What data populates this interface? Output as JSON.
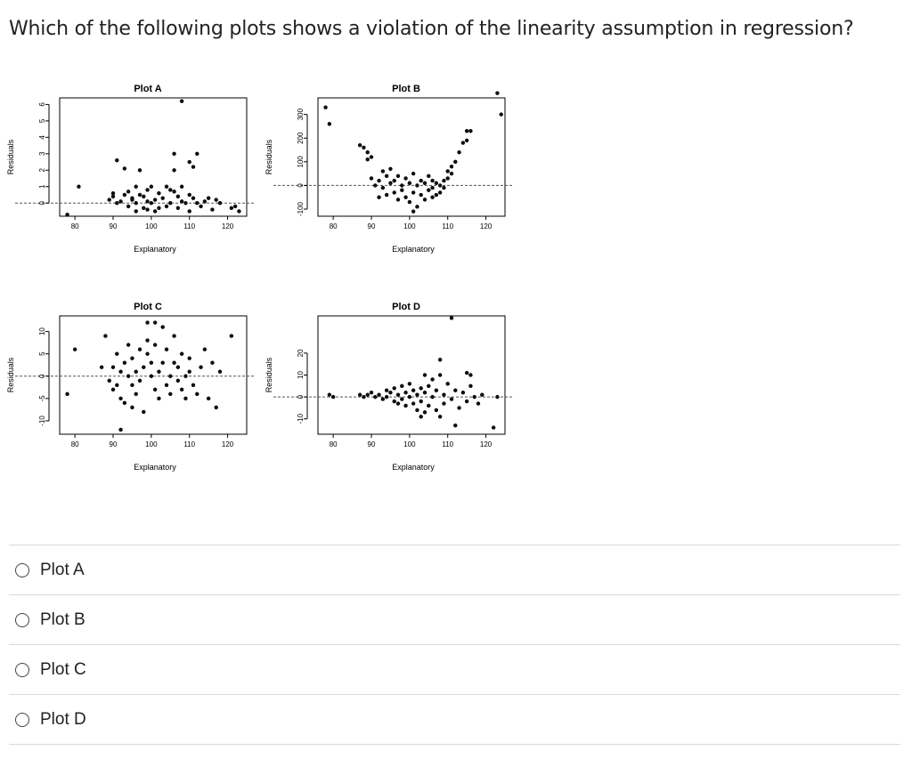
{
  "question": "Which of the following plots shows a violation of the linearity assumption in regression?",
  "options": [
    {
      "label": "Plot A"
    },
    {
      "label": "Plot B"
    },
    {
      "label": "Plot C"
    },
    {
      "label": "Plot D"
    }
  ],
  "chart_data": [
    {
      "type": "scatter",
      "title": "Plot A",
      "xlabel": "Explanatory",
      "ylabel": "Residuals",
      "xlim": [
        76,
        125
      ],
      "ylim": [
        -0.8,
        6.4
      ],
      "xticks": [
        "80",
        "90",
        "100",
        "110",
        "120"
      ],
      "yticks": [
        "0",
        "1",
        "2",
        "3",
        "4",
        "5",
        "6"
      ],
      "reference_line": 0,
      "points": [
        [
          78,
          -0.7
        ],
        [
          81,
          1.0
        ],
        [
          89,
          0.2
        ],
        [
          90,
          0.4
        ],
        [
          90,
          0.6
        ],
        [
          91,
          2.6
        ],
        [
          91,
          0.0
        ],
        [
          92,
          0.1
        ],
        [
          93,
          0.5
        ],
        [
          93,
          2.1
        ],
        [
          94,
          0.7
        ],
        [
          94,
          -0.2
        ],
        [
          95,
          0.3
        ],
        [
          95,
          0.2
        ],
        [
          96,
          1.0
        ],
        [
          96,
          0.0
        ],
        [
          97,
          0.5
        ],
        [
          97,
          2.0
        ],
        [
          98,
          -0.3
        ],
        [
          98,
          0.4
        ],
        [
          99,
          0.1
        ],
        [
          99,
          -0.4
        ],
        [
          100,
          1.0
        ],
        [
          100,
          0.0
        ],
        [
          101,
          0.2
        ],
        [
          102,
          0.6
        ],
        [
          102,
          -0.3
        ],
        [
          103,
          0.3
        ],
        [
          104,
          1.0
        ],
        [
          104,
          -0.2
        ],
        [
          105,
          0.0
        ],
        [
          106,
          2.0
        ],
        [
          106,
          3.0
        ],
        [
          106,
          0.7
        ],
        [
          107,
          0.4
        ],
        [
          107,
          -0.3
        ],
        [
          108,
          1.0
        ],
        [
          108,
          0.1
        ],
        [
          109,
          0.0
        ],
        [
          110,
          2.5
        ],
        [
          110,
          0.5
        ],
        [
          110,
          -0.5
        ],
        [
          111,
          2.2
        ],
        [
          111,
          0.3
        ],
        [
          112,
          3.0
        ],
        [
          112,
          0.0
        ],
        [
          113,
          -0.2
        ],
        [
          114,
          0.1
        ],
        [
          115,
          0.3
        ],
        [
          116,
          -0.4
        ],
        [
          117,
          0.2
        ],
        [
          118,
          0.0
        ],
        [
          121,
          -0.3
        ],
        [
          122,
          -0.2
        ],
        [
          123,
          -0.5
        ],
        [
          108,
          6.2
        ],
        [
          105,
          0.8
        ],
        [
          99,
          0.8
        ],
        [
          96,
          -0.5
        ],
        [
          101,
          -0.5
        ]
      ]
    },
    {
      "type": "scatter",
      "title": "Plot B",
      "xlabel": "Explanatory",
      "ylabel": "Residuals",
      "xlim": [
        76,
        125
      ],
      "ylim": [
        -130,
        370
      ],
      "xticks": [
        "80",
        "90",
        "100",
        "110",
        "120"
      ],
      "yticks": [
        "-100",
        "0",
        "100",
        "200",
        "300"
      ],
      "reference_line": 0,
      "points": [
        [
          78,
          330
        ],
        [
          79,
          260
        ],
        [
          87,
          170
        ],
        [
          88,
          160
        ],
        [
          89,
          140
        ],
        [
          89,
          110
        ],
        [
          90,
          120
        ],
        [
          90,
          30
        ],
        [
          91,
          0
        ],
        [
          92,
          20
        ],
        [
          93,
          -10
        ],
        [
          93,
          60
        ],
        [
          94,
          40
        ],
        [
          94,
          -40
        ],
        [
          95,
          10
        ],
        [
          95,
          70
        ],
        [
          96,
          -30
        ],
        [
          96,
          20
        ],
        [
          97,
          -60
        ],
        [
          97,
          40
        ],
        [
          98,
          0
        ],
        [
          98,
          -20
        ],
        [
          99,
          -50
        ],
        [
          99,
          30
        ],
        [
          100,
          -70
        ],
        [
          100,
          10
        ],
        [
          101,
          -30
        ],
        [
          101,
          50
        ],
        [
          102,
          -90
        ],
        [
          102,
          0
        ],
        [
          103,
          -40
        ],
        [
          103,
          20
        ],
        [
          104,
          -60
        ],
        [
          104,
          10
        ],
        [
          105,
          -20
        ],
        [
          105,
          40
        ],
        [
          106,
          -10
        ],
        [
          106,
          20
        ],
        [
          107,
          -40
        ],
        [
          107,
          10
        ],
        [
          108,
          0
        ],
        [
          108,
          -30
        ],
        [
          109,
          20
        ],
        [
          109,
          -10
        ],
        [
          110,
          30
        ],
        [
          110,
          60
        ],
        [
          111,
          50
        ],
        [
          111,
          80
        ],
        [
          112,
          100
        ],
        [
          113,
          140
        ],
        [
          114,
          180
        ],
        [
          115,
          190
        ],
        [
          115,
          230
        ],
        [
          116,
          230
        ],
        [
          124,
          300
        ],
        [
          123,
          390
        ],
        [
          92,
          -50
        ],
        [
          101,
          -110
        ],
        [
          106,
          -50
        ]
      ]
    },
    {
      "type": "scatter",
      "title": "Plot C",
      "xlabel": "Explanatory",
      "ylabel": "Residuals",
      "xlim": [
        76,
        125
      ],
      "ylim": [
        -13,
        13.5
      ],
      "xticks": [
        "80",
        "90",
        "100",
        "110",
        "120"
      ],
      "yticks": [
        "-10",
        "-5",
        "0",
        "5",
        "10"
      ],
      "reference_line": 0,
      "points": [
        [
          78,
          -4
        ],
        [
          80,
          6
        ],
        [
          87,
          2
        ],
        [
          88,
          9
        ],
        [
          89,
          -1
        ],
        [
          90,
          -3
        ],
        [
          90,
          2
        ],
        [
          91,
          5
        ],
        [
          91,
          -2
        ],
        [
          92,
          1
        ],
        [
          92,
          -5
        ],
        [
          93,
          3
        ],
        [
          93,
          -6
        ],
        [
          94,
          0
        ],
        [
          94,
          7
        ],
        [
          95,
          -2
        ],
        [
          95,
          4
        ],
        [
          96,
          1
        ],
        [
          96,
          -4
        ],
        [
          97,
          6
        ],
        [
          97,
          -1
        ],
        [
          98,
          2
        ],
        [
          98,
          -8
        ],
        [
          99,
          5
        ],
        [
          99,
          8
        ],
        [
          100,
          0
        ],
        [
          100,
          3
        ],
        [
          101,
          -3
        ],
        [
          101,
          7
        ],
        [
          102,
          1
        ],
        [
          102,
          -5
        ],
        [
          103,
          3
        ],
        [
          103,
          11
        ],
        [
          104,
          -2
        ],
        [
          104,
          6
        ],
        [
          105,
          0
        ],
        [
          105,
          -4
        ],
        [
          106,
          3
        ],
        [
          106,
          9
        ],
        [
          107,
          -1
        ],
        [
          107,
          2
        ],
        [
          108,
          5
        ],
        [
          108,
          -3
        ],
        [
          109,
          0
        ],
        [
          109,
          -5
        ],
        [
          110,
          1
        ],
        [
          110,
          4
        ],
        [
          111,
          -2
        ],
        [
          112,
          -4
        ],
        [
          113,
          2
        ],
        [
          114,
          6
        ],
        [
          115,
          -5
        ],
        [
          116,
          3
        ],
        [
          117,
          -7
        ],
        [
          118,
          1
        ],
        [
          121,
          9
        ],
        [
          92,
          -12
        ],
        [
          101,
          12
        ],
        [
          99,
          12
        ],
        [
          95,
          -7
        ]
      ]
    },
    {
      "type": "scatter",
      "title": "Plot D",
      "xlabel": "Explanatory",
      "ylabel": "Residuals",
      "xlim": [
        76,
        125
      ],
      "ylim": [
        -17,
        37
      ],
      "xticks": [
        "80",
        "90",
        "100",
        "110",
        "120"
      ],
      "yticks": [
        "-10",
        "0",
        "10",
        "20"
      ],
      "reference_line": 0,
      "points": [
        [
          79,
          1
        ],
        [
          80,
          0
        ],
        [
          87,
          1
        ],
        [
          88,
          0
        ],
        [
          89,
          1
        ],
        [
          90,
          2
        ],
        [
          91,
          0
        ],
        [
          92,
          1
        ],
        [
          93,
          -1
        ],
        [
          94,
          3
        ],
        [
          94,
          0
        ],
        [
          95,
          2
        ],
        [
          96,
          -2
        ],
        [
          96,
          4
        ],
        [
          97,
          1
        ],
        [
          97,
          -3
        ],
        [
          98,
          5
        ],
        [
          98,
          -1
        ],
        [
          99,
          2
        ],
        [
          99,
          -4
        ],
        [
          100,
          0
        ],
        [
          100,
          6
        ],
        [
          101,
          -3
        ],
        [
          101,
          3
        ],
        [
          102,
          -6
        ],
        [
          102,
          1
        ],
        [
          103,
          4
        ],
        [
          103,
          -2
        ],
        [
          104,
          -7
        ],
        [
          104,
          2
        ],
        [
          105,
          5
        ],
        [
          105,
          -4
        ],
        [
          106,
          8
        ],
        [
          106,
          0
        ],
        [
          107,
          -6
        ],
        [
          107,
          3
        ],
        [
          108,
          -9
        ],
        [
          108,
          10
        ],
        [
          109,
          1
        ],
        [
          109,
          -3
        ],
        [
          110,
          6
        ],
        [
          111,
          -1
        ],
        [
          112,
          3
        ],
        [
          113,
          -5
        ],
        [
          114,
          2
        ],
        [
          115,
          -2
        ],
        [
          116,
          5
        ],
        [
          117,
          0
        ],
        [
          118,
          -3
        ],
        [
          119,
          1
        ],
        [
          123,
          0
        ],
        [
          116,
          10
        ],
        [
          108,
          17
        ],
        [
          112,
          -13
        ],
        [
          115,
          11
        ],
        [
          104,
          10
        ],
        [
          111,
          36
        ],
        [
          122,
          -14
        ],
        [
          103,
          -9
        ]
      ]
    }
  ]
}
